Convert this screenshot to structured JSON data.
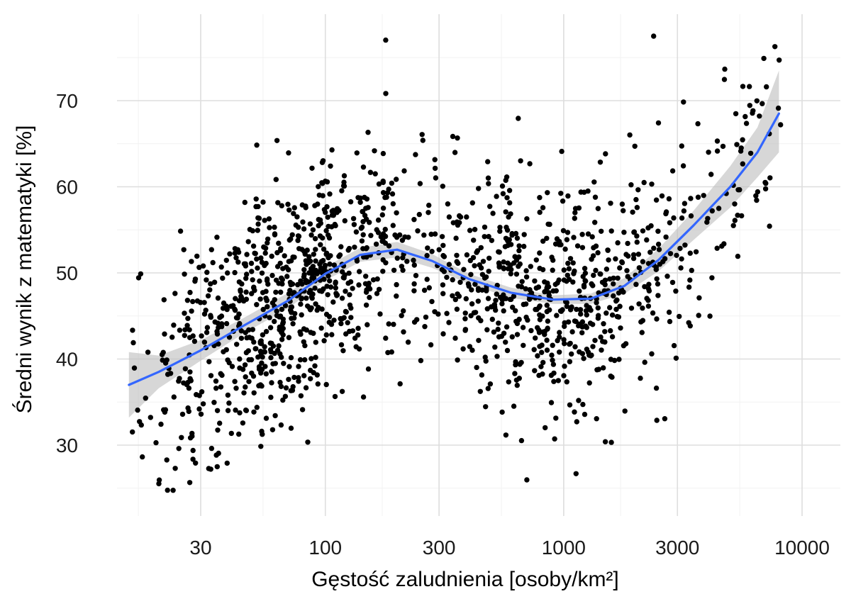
{
  "chart_data": {
    "type": "scatter",
    "xlabel": "Gęstość zaludnienia [osoby/km²]",
    "ylabel": "Średni wynik z matematyki [%]",
    "x_scale": "log10",
    "xlim": [
      14,
      12500
    ],
    "ylim": [
      22,
      78
    ],
    "x_ticks": [
      30,
      100,
      300,
      1000,
      3000,
      10000
    ],
    "x_tick_labels": [
      "30",
      "100",
      "300",
      "1000",
      "3000",
      "10000"
    ],
    "y_ticks": [
      30,
      40,
      50,
      60,
      70
    ],
    "y_tick_labels": [
      "30",
      "40",
      "50",
      "60",
      "70"
    ],
    "grid": true,
    "point_color": "#000000",
    "point_count": 1500,
    "smooth": {
      "method": "loess",
      "color": "#3366ff",
      "band_color": "#bebebe",
      "x": [
        15,
        20,
        30,
        45,
        70,
        100,
        140,
        200,
        280,
        400,
        600,
        900,
        1300,
        1800,
        2500,
        3500,
        5000,
        6500,
        8000
      ],
      "y": [
        37.0,
        38.5,
        41.0,
        43.8,
        46.8,
        49.9,
        52.1,
        52.7,
        51.4,
        49.3,
        47.7,
        46.9,
        47.0,
        48.5,
        51.5,
        55.5,
        60.0,
        64.0,
        68.5
      ],
      "lower": [
        33.2,
        36.6,
        39.8,
        42.9,
        45.9,
        49.1,
        51.3,
        51.8,
        50.6,
        48.7,
        47.1,
        46.4,
        46.4,
        47.6,
        50.2,
        53.8,
        57.6,
        61.1,
        64.0
      ],
      "upper": [
        40.8,
        40.4,
        42.2,
        44.7,
        47.7,
        50.7,
        52.9,
        53.6,
        52.2,
        49.9,
        48.3,
        47.4,
        47.6,
        49.4,
        52.8,
        57.2,
        62.4,
        66.9,
        73.5
      ]
    }
  }
}
